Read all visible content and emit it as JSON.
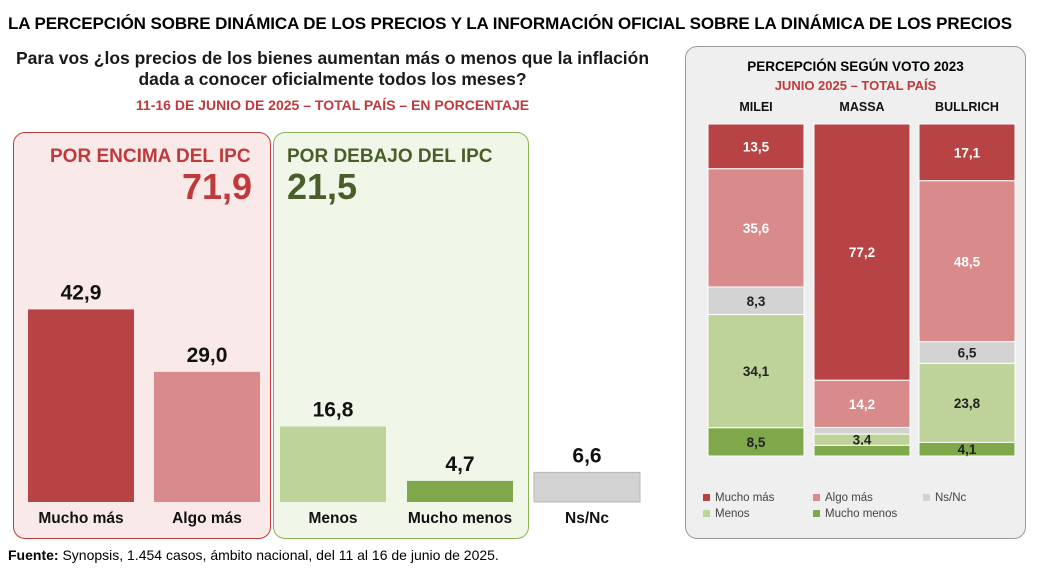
{
  "header": {
    "title": "LA PERCEPCIÓN SOBRE DINÁMICA DE LOS PRECIOS Y LA INFORMACIÓN OFICIAL SOBRE LA DINÁMICA DE LOS PRECIOS",
    "question": "Para vos ¿los precios de los bienes aumentan más o menos que la inflación dada a conocer oficialmente todos los meses?",
    "subtitle": "11-16 DE JUNIO DE 2025 – TOTAL PAÍS – EN PORCENTAJE"
  },
  "groups": {
    "above": {
      "label": "POR ENCIMA DEL IPC",
      "value": "71,9"
    },
    "below": {
      "label": "POR DEBAJO DEL IPC",
      "value": "21,5"
    }
  },
  "source": {
    "label": "Fuente:",
    "text": "Synopsis, 1.454 casos, ámbito nacional, del 11 al 16 de junio de 2025."
  },
  "colors": {
    "mucho_mas": "#b84345",
    "algo_mas": "#d98a8b",
    "ns_nc": "#d2d2d2",
    "menos": "#bdd399",
    "mucho_menos": "#7fa84a",
    "red_text": "#c0393b",
    "green_text": "#4a5e2a"
  },
  "chart_data": [
    {
      "type": "bar",
      "categories": [
        "Mucho más",
        "Algo más",
        "Menos",
        "Mucho menos",
        "Ns/Nc"
      ],
      "values": [
        42.9,
        29.0,
        16.8,
        4.7,
        6.6
      ],
      "labels": [
        "42,9",
        "29,0",
        "16,8",
        "4,7",
        "6,6"
      ],
      "colors": [
        "#b84345",
        "#d98a8b",
        "#bdd399",
        "#7fa84a",
        "#d2d2d2"
      ],
      "ylim": [
        0,
        45
      ]
    },
    {
      "type": "bar",
      "stacked": true,
      "percent": true,
      "title": "PERCEPCIÓN SEGÚN VOTO 2023",
      "subtitle": "JUNIO 2025 – TOTAL PAÍS",
      "categories": [
        "MILEI",
        "MASSA",
        "BULLRICH"
      ],
      "series": [
        {
          "name": "Mucho más",
          "color": "#b84345",
          "values": [
            13.5,
            77.2,
            17.1
          ],
          "labels": [
            "13,5",
            "77,2",
            "17,1"
          ]
        },
        {
          "name": "Algo más",
          "color": "#d98a8b",
          "values": [
            35.6,
            14.2,
            48.5
          ],
          "labels": [
            "35,6",
            "14,2",
            "48,5"
          ]
        },
        {
          "name": "Ns/Nc",
          "color": "#d2d2d2",
          "values": [
            8.3,
            2.0,
            6.5
          ],
          "labels": [
            "8,3",
            "",
            "6,5"
          ]
        },
        {
          "name": "Menos",
          "color": "#bdd399",
          "values": [
            34.1,
            3.4,
            23.8
          ],
          "labels": [
            "34,1",
            "3,4",
            "23,8"
          ]
        },
        {
          "name": "Mucho menos",
          "color": "#7fa84a",
          "values": [
            8.5,
            3.2,
            4.1
          ],
          "labels": [
            "8,5",
            "",
            "4,1"
          ]
        }
      ],
      "legend_position": "bottom"
    }
  ]
}
